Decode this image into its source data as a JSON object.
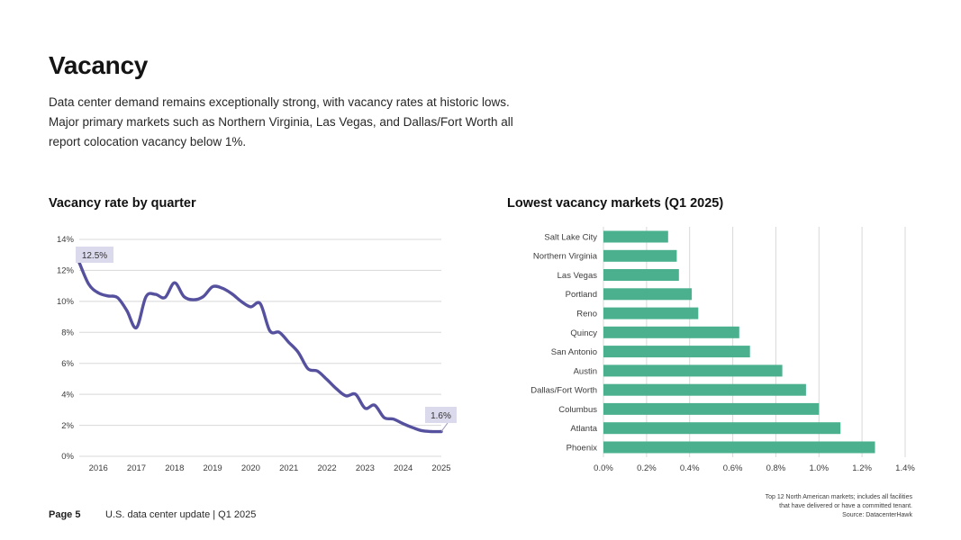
{
  "page": {
    "title": "Vacancy",
    "intro_lines": [
      "Data center demand remains exceptionally strong, with vacancy rates at historic lows.",
      "Major primary markets such as Northern Virginia, Las Vegas, and Dallas/Fort Worth all",
      "report colocation vacancy below 1%."
    ],
    "source_note_lines": [
      "Top 12 North American markets; includes all  facilities",
      "that have delivered or have a committed tenant.",
      "Source: DatacenterHawk"
    ],
    "footer": {
      "page_label": "Page 5",
      "doc_label": "U.S. data center update | Q1 2025"
    }
  },
  "colors": {
    "line": "#55519e",
    "annotation_bg": "#dbd9ec",
    "annotation_text": "#333333",
    "bar": "#4ab08d",
    "grid": "#d8d8d8",
    "axis_text": "#3c3c3c",
    "connector": "#9a98b5"
  },
  "chart_data": [
    {
      "type": "line",
      "title": "Vacancy rate by quarter",
      "series": [
        {
          "name": "Vacancy rate",
          "values": [
            12.5,
            11.1,
            10.55,
            10.35,
            10.25,
            9.4,
            8.3,
            10.3,
            10.45,
            10.25,
            11.2,
            10.3,
            10.1,
            10.3,
            10.95,
            10.85,
            10.5,
            10.0,
            9.65,
            9.85,
            8.1,
            8.0,
            7.35,
            6.7,
            5.65,
            5.5,
            4.95,
            4.35,
            3.9,
            4.0,
            3.1,
            3.3,
            2.5,
            2.4,
            2.1,
            1.85,
            1.65,
            1.6,
            1.6
          ]
        }
      ],
      "x_tick_labels": [
        "2016",
        "2017",
        "2018",
        "2019",
        "2020",
        "2021",
        "2022",
        "2023",
        "2024",
        "2025"
      ],
      "y_tick_labels": [
        "0%",
        "2%",
        "4%",
        "6%",
        "8%",
        "10%",
        "12%",
        "14%"
      ],
      "ylim": [
        0,
        14
      ],
      "grid": "horizontal",
      "annotations": {
        "first_point_label": "12.5%",
        "last_point_label": "1.6%"
      }
    },
    {
      "type": "bar",
      "title": "Lowest vacancy markets (Q1 2025)",
      "categories": [
        "Salt Lake City",
        "Northern Virginia",
        "Las Vegas",
        "Portland",
        "Reno",
        "Quincy",
        "San Antonio",
        "Austin",
        "Dallas/Fort Worth",
        "Columbus",
        "Atlanta",
        "Phoenix"
      ],
      "values": [
        0.3,
        0.34,
        0.35,
        0.41,
        0.44,
        0.63,
        0.68,
        0.83,
        0.94,
        1.0,
        1.1,
        1.26
      ],
      "x_tick_labels": [
        "0.0%",
        "0.2%",
        "0.4%",
        "0.6%",
        "0.8%",
        "1.0%",
        "1.2%",
        "1.4%"
      ],
      "xlim": [
        0,
        1.4
      ],
      "grid": "vertical"
    }
  ]
}
